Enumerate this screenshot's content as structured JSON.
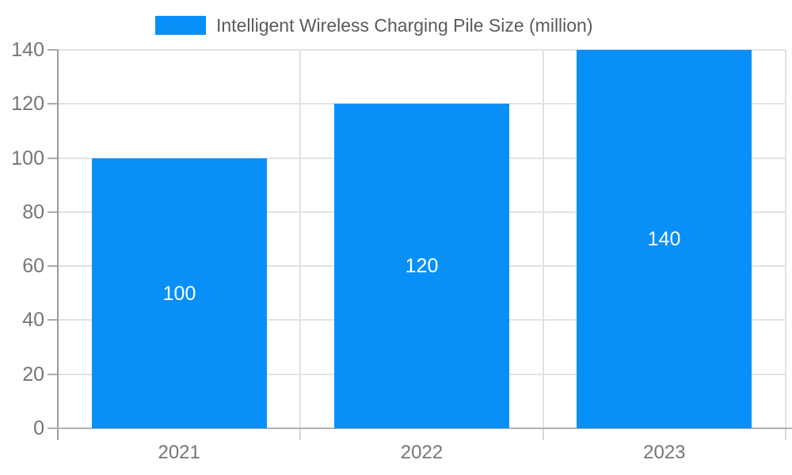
{
  "chart_data": {
    "type": "bar",
    "title": "Intelligent Wireless Charging Pile Size (million)",
    "categories": [
      "2021",
      "2022",
      "2023"
    ],
    "values": [
      100,
      120,
      140
    ],
    "data_labels": [
      "100",
      "120",
      "140"
    ],
    "xlabel": "",
    "ylabel": "",
    "ylim": [
      0,
      140
    ],
    "ytick_step": 20,
    "ytick_labels": [
      "0",
      "20",
      "40",
      "60",
      "80",
      "100",
      "120",
      "140"
    ],
    "grid": true,
    "legend_position": "top-center",
    "bar_color": "#0990f8",
    "bar_label_color": "#ffffff"
  },
  "legend": {
    "label": "Intelligent Wireless Charging Pile Size (million)",
    "swatch_color": "#0990f8"
  },
  "colors": {
    "axis_line": "#9b9b9b",
    "bottom_axis_line": "#b2b2b2",
    "grid_line": "#e2e2e2",
    "tick": "#ababab",
    "under_tick": "#d8d8d8",
    "axis_text": "#757575",
    "legend_text": "#5a5a5a",
    "background": "#ffffff"
  }
}
